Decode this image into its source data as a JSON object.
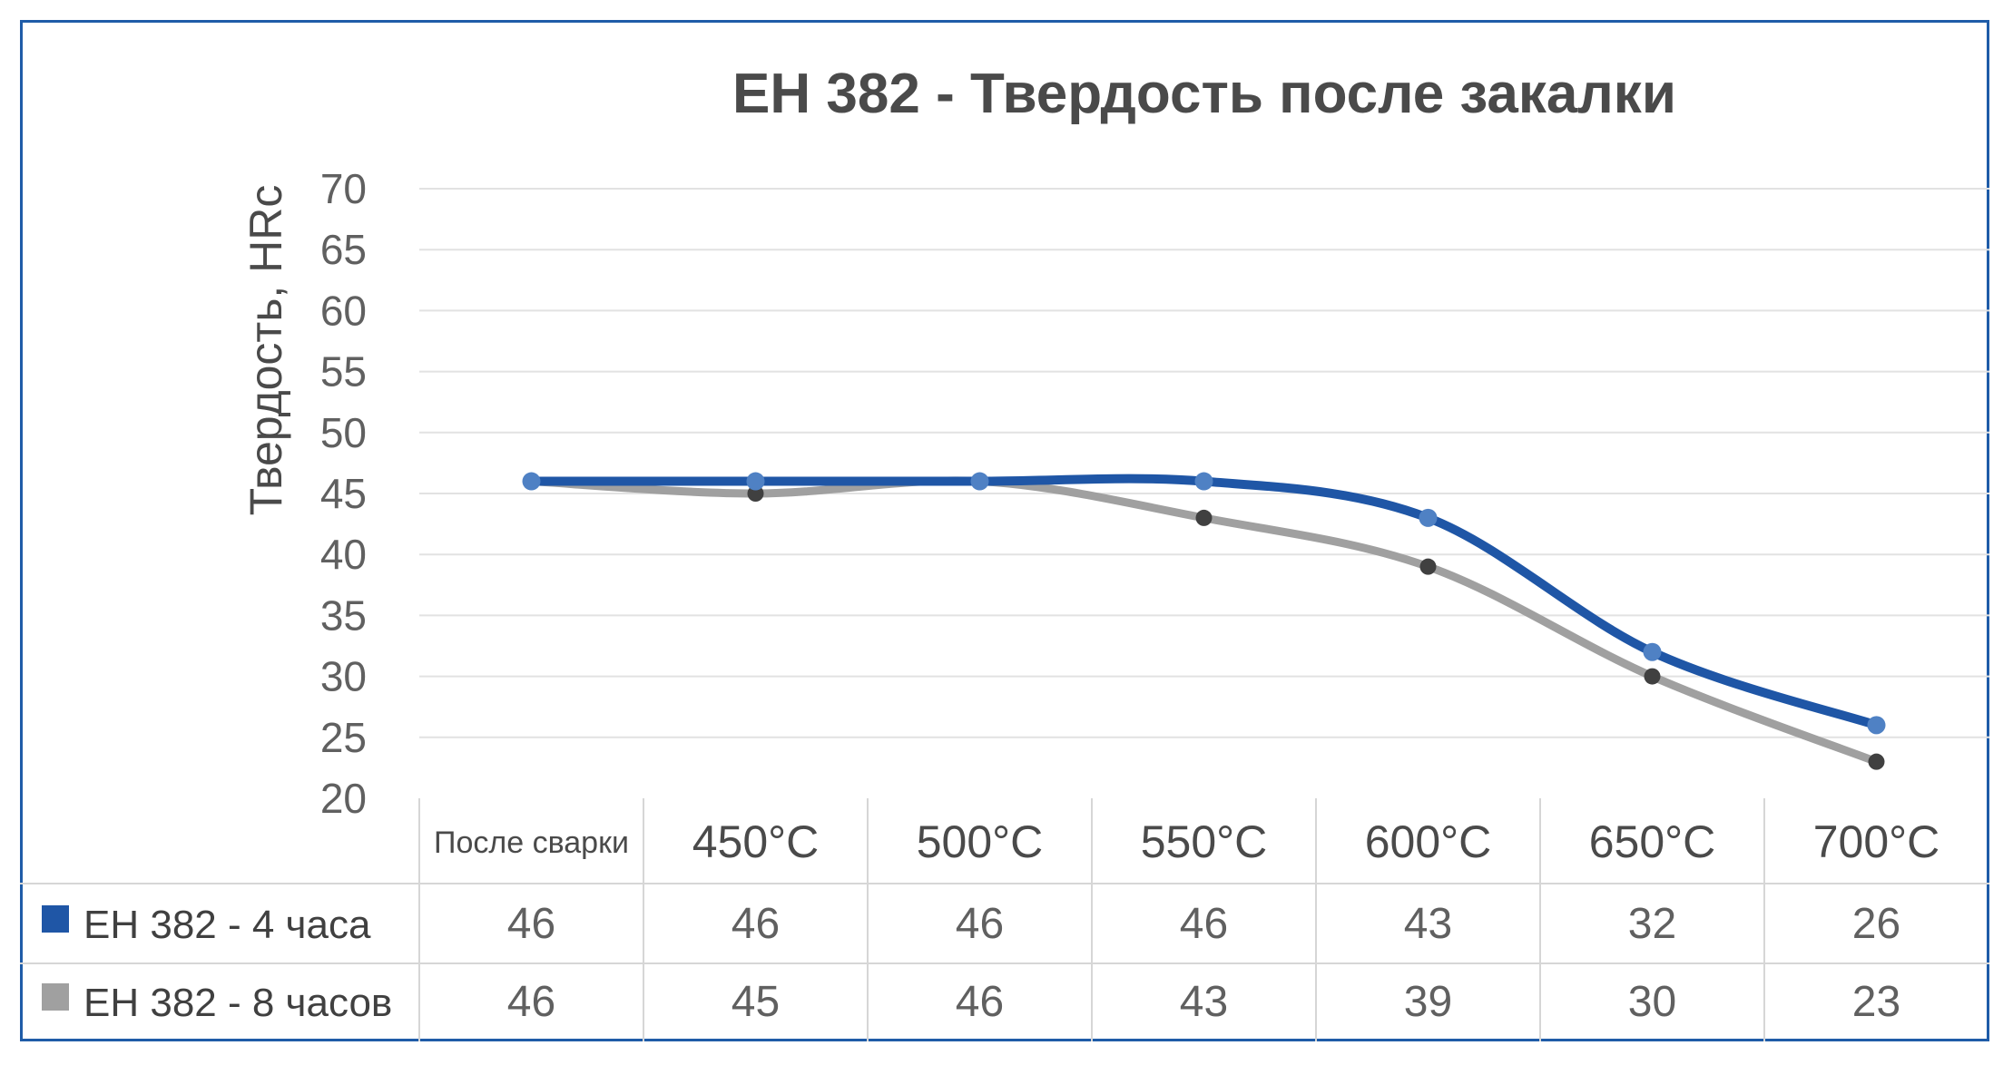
{
  "chart_data": {
    "type": "line",
    "title": "EH 382 - Твердость после закалки",
    "ylabel": "Твердость, HRc",
    "xlabel": "",
    "ylim": [
      20,
      70
    ],
    "yticks": [
      "20",
      "25",
      "30",
      "35",
      "40",
      "45",
      "50",
      "55",
      "60",
      "65",
      "70"
    ],
    "categories": [
      "После сварки",
      "450°C",
      "500°C",
      "550°C",
      "600°C",
      "650°C",
      "700°C"
    ],
    "series": [
      {
        "name": "EH 382 - 4 часа",
        "values": [
          46,
          46,
          46,
          46,
          43,
          32,
          26
        ],
        "color": "#1f56a6",
        "marker_color": "#4f81c4"
      },
      {
        "name": "EH 382 - 8 часов",
        "values": [
          46,
          45,
          46,
          43,
          39,
          30,
          23
        ],
        "color": "#a0a0a0",
        "marker_color": "#404040"
      }
    ],
    "grid": true,
    "smooth": true,
    "data_table": true
  },
  "colors": {
    "frame": "#1f5ca8",
    "grid": "#e2e2e2",
    "table_border": "#d6d6d6"
  }
}
